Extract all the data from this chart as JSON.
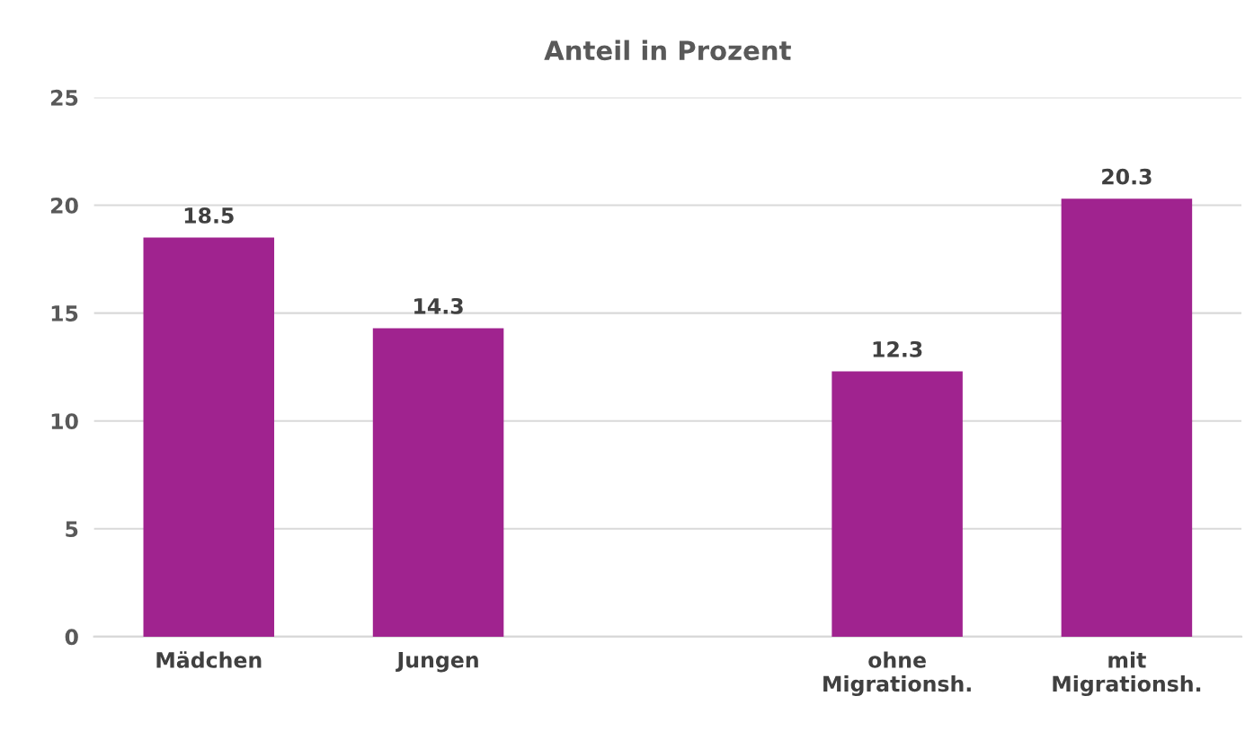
{
  "chart_data": {
    "type": "bar",
    "title": "Anteil in Prozent",
    "categories": [
      "Mädchen",
      "Jungen",
      null,
      "ohne\nMigrationsh.",
      "mit\nMigrationsh."
    ],
    "values": [
      18.5,
      14.3,
      null,
      12.3,
      20.3
    ],
    "color": "#a0238f",
    "ylim": [
      0,
      25
    ],
    "yticks": [
      0,
      5,
      10,
      15,
      20,
      25
    ],
    "grid": "y",
    "data_labels": true
  }
}
